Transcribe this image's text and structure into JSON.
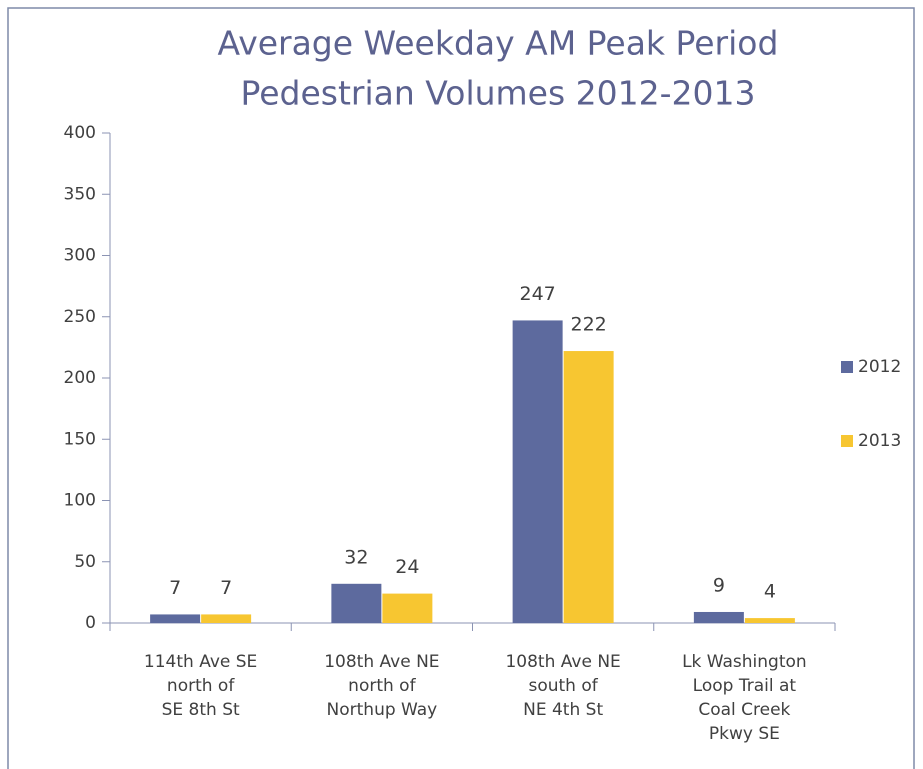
{
  "chart_data": {
    "type": "bar",
    "title": [
      "Average Weekday AM Peak Period",
      "Pedestrian Volumes 2012-2013"
    ],
    "categories": [
      [
        "114th Ave SE",
        "north of",
        "SE 8th St"
      ],
      [
        "108th Ave NE",
        "north of",
        "Northup Way"
      ],
      [
        "108th Ave NE",
        "south of",
        "NE 4th St"
      ],
      [
        "Lk Washington",
        "Loop Trail  at",
        "Coal Creek",
        "Pkwy SE"
      ]
    ],
    "series": [
      {
        "name": "2012",
        "color": "#5d6a9e",
        "values": [
          7,
          32,
          247,
          9
        ]
      },
      {
        "name": "2013",
        "color": "#f7c631",
        "values": [
          7,
          24,
          222,
          4
        ]
      }
    ],
    "ylim": [
      0,
      400
    ],
    "yticks": [
      0,
      50,
      100,
      150,
      200,
      250,
      300,
      350,
      400
    ],
    "legend": "right"
  }
}
